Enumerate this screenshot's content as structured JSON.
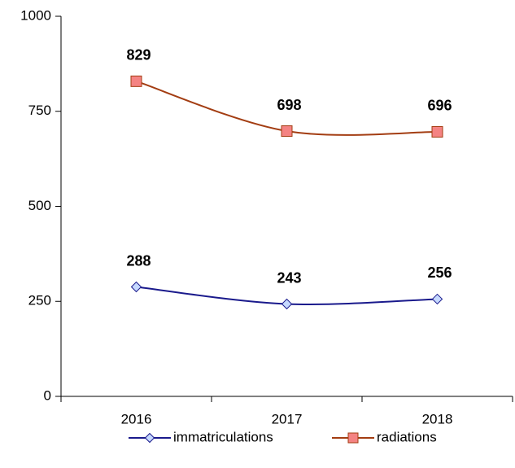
{
  "chart_data": {
    "type": "line",
    "categories": [
      "2016",
      "2017",
      "2018"
    ],
    "series": [
      {
        "name": "immatriculations",
        "color": "#1a1a8c",
        "marker_fill": "#c6d9ff",
        "marker": "diamond",
        "values": [
          288,
          243,
          256
        ]
      },
      {
        "name": "radiations",
        "color": "#a33d12",
        "marker_fill": "#f48383",
        "marker": "square",
        "values": [
          829,
          698,
          696
        ]
      }
    ],
    "ylim": [
      0,
      1000
    ],
    "yticks": [
      0,
      250,
      500,
      750,
      1000
    ],
    "grid": false,
    "legend": "bottom",
    "smooth": true
  }
}
